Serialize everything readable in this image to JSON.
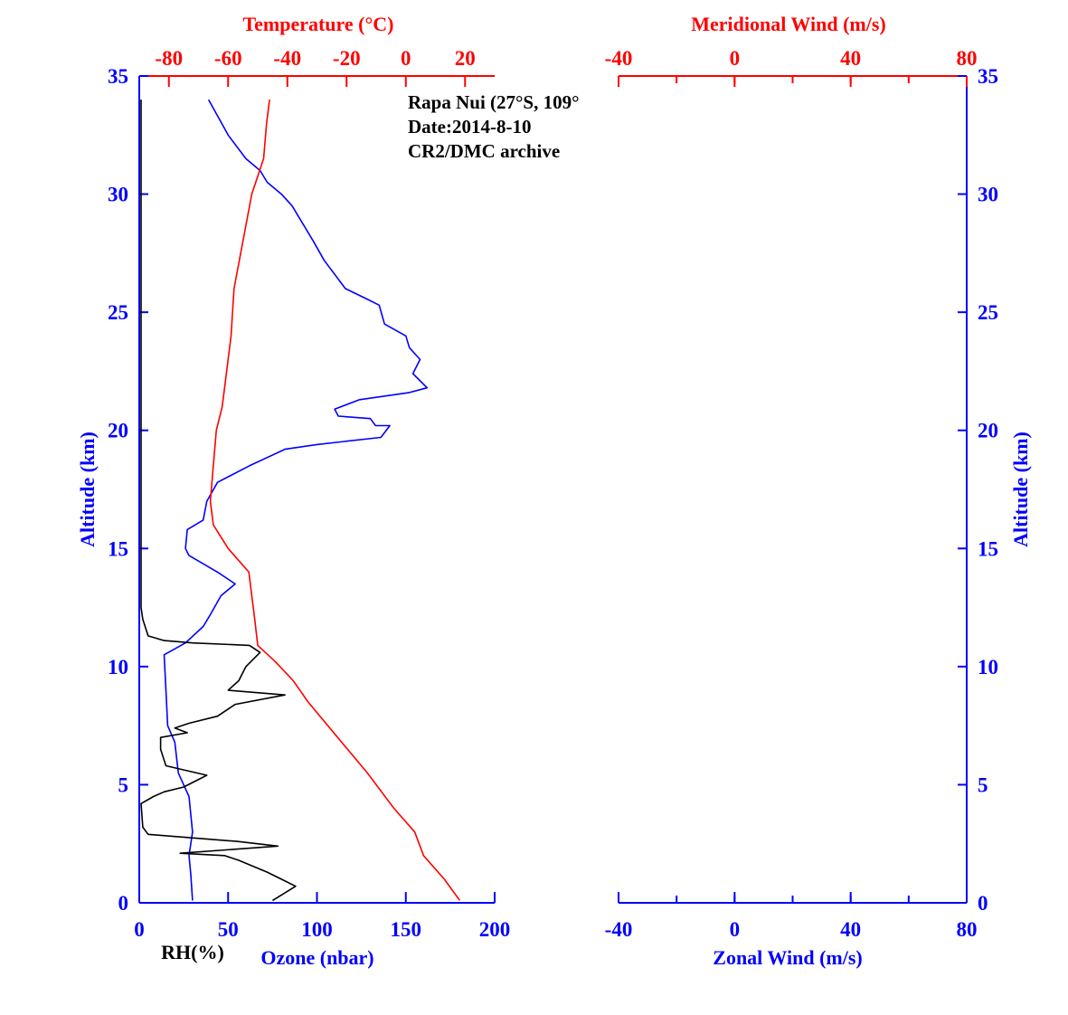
{
  "chart_data": [
    {
      "type": "line",
      "annotation": [
        "Rapa Nui (27°S, 109°",
        "Date:2014-8-10",
        "CR2/DMC archive"
      ],
      "y_axis": {
        "label": "Altitude (km)",
        "ylim": [
          0,
          35
        ],
        "ticks": [
          "0",
          "5",
          "10",
          "15",
          "20",
          "25",
          "30",
          "35"
        ],
        "color": "#0000ff"
      },
      "x_axis_bottom": {
        "label": "Ozone (nbar)",
        "xlim": [
          0,
          200
        ],
        "ticks": [
          "0",
          "50",
          "100",
          "150",
          "200"
        ],
        "color": "#0000ff"
      },
      "x_axis_top": {
        "label": "Temperature (°C)",
        "xlim": [
          -90,
          30
        ],
        "ticks": [
          "-80",
          "-60",
          "-40",
          "-20",
          "0",
          "20"
        ],
        "color": "#ff0000"
      },
      "rh_label": "RH(%)",
      "series": [
        {
          "key": "ozone",
          "axis": "bottom",
          "color": "#0000ff",
          "points": [
            [
              30,
              0.1
            ],
            [
              29,
              1.2
            ],
            [
              28,
              2
            ],
            [
              30,
              3
            ],
            [
              28,
              4.5
            ],
            [
              22,
              5.5
            ],
            [
              20,
              6.8
            ],
            [
              16,
              7.5
            ],
            [
              15,
              9
            ],
            [
              14,
              10.5
            ],
            [
              26,
              11
            ],
            [
              36,
              11.7
            ],
            [
              40,
              12.2
            ],
            [
              46,
              13
            ],
            [
              54,
              13.5
            ],
            [
              44,
              14
            ],
            [
              28,
              14.7
            ],
            [
              26,
              15
            ],
            [
              27,
              15.8
            ],
            [
              36,
              16.2
            ],
            [
              38,
              17
            ],
            [
              44,
              17.8
            ],
            [
              62,
              18.5
            ],
            [
              82,
              19.2
            ],
            [
              100,
              19.4
            ],
            [
              136,
              19.7
            ],
            [
              141,
              20.2
            ],
            [
              133,
              20.2
            ],
            [
              130,
              20.5
            ],
            [
              112,
              20.6
            ],
            [
              110,
              20.9
            ],
            [
              124,
              21.3
            ],
            [
              152,
              21.6
            ],
            [
              162,
              21.8
            ],
            [
              154,
              22.4
            ],
            [
              158,
              23
            ],
            [
              152,
              23.5
            ],
            [
              150,
              24
            ],
            [
              138,
              24.5
            ],
            [
              135,
              25.3
            ],
            [
              127,
              25.6
            ],
            [
              116,
              26
            ],
            [
              104,
              27.2
            ],
            [
              98,
              28
            ],
            [
              86,
              29.5
            ],
            [
              80,
              30
            ],
            [
              72,
              30.5
            ],
            [
              68,
              31
            ],
            [
              60,
              31.5
            ],
            [
              50,
              32.5
            ],
            [
              39,
              34
            ]
          ]
        },
        {
          "key": "temperature",
          "axis": "top",
          "color": "#ff0000",
          "points": [
            [
              18.2,
              0.1
            ],
            [
              13,
              1
            ],
            [
              6,
              2
            ],
            [
              3,
              3
            ],
            [
              -4,
              4
            ],
            [
              -13,
              5.5
            ],
            [
              -23,
              7
            ],
            [
              -33,
              8.5
            ],
            [
              -38,
              9.4
            ],
            [
              -44,
              10.2
            ],
            [
              -50,
              10.9
            ],
            [
              -51,
              12
            ],
            [
              -52,
              13
            ],
            [
              -53,
              14
            ],
            [
              -60,
              15
            ],
            [
              -65,
              16
            ],
            [
              -66,
              17
            ],
            [
              -65,
              18.5
            ],
            [
              -64,
              20
            ],
            [
              -62,
              21
            ],
            [
              -61,
              22
            ],
            [
              -59,
              24
            ],
            [
              -58,
              26
            ],
            [
              -55,
              28
            ],
            [
              -52,
              30
            ],
            [
              -48,
              31.5
            ],
            [
              -47,
              33
            ],
            [
              -46,
              34
            ]
          ]
        },
        {
          "key": "rh",
          "axis": "bottom",
          "color": "#000000",
          "points": [
            [
              75,
              0.1
            ],
            [
              88,
              0.7
            ],
            [
              80,
              1
            ],
            [
              72,
              1.3
            ],
            [
              56,
              1.8
            ],
            [
              48,
              2
            ],
            [
              23,
              2.1
            ],
            [
              78,
              2.4
            ],
            [
              55,
              2.6
            ],
            [
              5,
              2.9
            ],
            [
              2,
              3.2
            ],
            [
              1,
              4.2
            ],
            [
              8,
              4.5
            ],
            [
              14,
              4.7
            ],
            [
              25,
              4.9
            ],
            [
              38,
              5.4
            ],
            [
              15,
              5.8
            ],
            [
              12,
              6.5
            ],
            [
              12,
              7
            ],
            [
              27,
              7.2
            ],
            [
              20,
              7.4
            ],
            [
              28,
              7.6
            ],
            [
              44,
              7.9
            ],
            [
              54,
              8.4
            ],
            [
              82,
              8.8
            ],
            [
              50,
              9
            ],
            [
              56,
              9.4
            ],
            [
              60,
              10
            ],
            [
              68,
              10.6
            ],
            [
              62,
              10.9
            ],
            [
              30,
              11
            ],
            [
              14,
              11.1
            ],
            [
              5,
              11.3
            ],
            [
              2,
              12
            ],
            [
              1,
              12.5
            ],
            [
              1,
              34
            ]
          ]
        }
      ]
    },
    {
      "type": "line",
      "y_axis": {
        "label": "Altitude (km)",
        "ylim": [
          0,
          35
        ],
        "ticks": [
          "0",
          "5",
          "10",
          "15",
          "20",
          "25",
          "30",
          "35"
        ],
        "color": "#0000ff"
      },
      "x_axis_bottom": {
        "label": "Zonal Wind (m/s)",
        "xlim": [
          -40,
          80
        ],
        "ticks": [
          "-40",
          "0",
          "40",
          "80"
        ],
        "color": "#0000ff"
      },
      "x_axis_top": {
        "label": "Meridional Wind (m/s)",
        "xlim": [
          -40,
          80
        ],
        "ticks": [
          "-40",
          "0",
          "40",
          "80"
        ],
        "color": "#ff0000"
      },
      "series": []
    }
  ]
}
